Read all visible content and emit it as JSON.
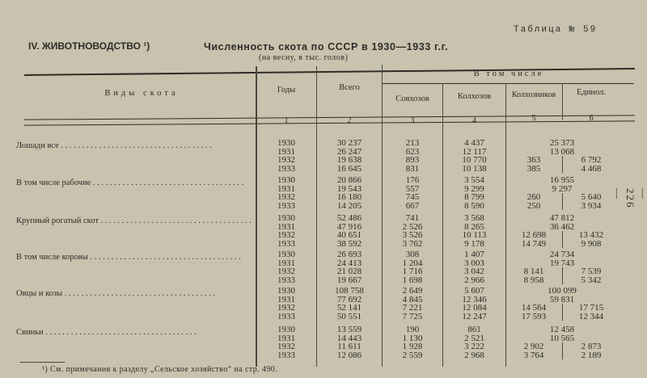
{
  "section_title": "IV. ЖИВОТНОВОДСТВО ¹)",
  "table_number": "Таблица № 59",
  "title": "Численность скота по СССР в 1930—1933 г.г.",
  "subtitle": "(на весну, в тыс. голов)",
  "page_number": "— 226 —",
  "headers": {
    "kind": "Виды скота",
    "years": "Годы",
    "total": "Всего",
    "including": "В том числе",
    "sovkhoz": "Совхозов",
    "kolkhoz": "Колхозов",
    "kolkhoznik": "Колхозников",
    "individual": "Единол.",
    "col_numbers": [
      "1",
      "2",
      "3",
      "4",
      "5",
      "6"
    ]
  },
  "rows": [
    {
      "label": "Лошади все",
      "years": [
        {
          "year": "1930",
          "total": "30 237",
          "sovkhoz": "213",
          "kolkhoz": "4 437",
          "combined": "25 373"
        },
        {
          "year": "1931",
          "total": "26 247",
          "sovkhoz": "623",
          "kolkhoz": "12 117",
          "combined": "13 068"
        },
        {
          "year": "1932",
          "total": "19 638",
          "sovkhoz": "893",
          "kolkhoz": "10 770",
          "kolkhoznik": "363",
          "individual": "6 792"
        },
        {
          "year": "1933",
          "total": "16 645",
          "sovkhoz": "831",
          "kolkhoz": "10 138",
          "kolkhoznik": "385",
          "individual": "4 468"
        }
      ]
    },
    {
      "label": "В том числе рабочие",
      "years": [
        {
          "year": "1930",
          "total": "20 866",
          "sovkhoz": "176",
          "kolkhoz": "3 554",
          "combined": "16 955"
        },
        {
          "year": "1931",
          "total": "19 543",
          "sovkhoz": "557",
          "kolkhoz": "9 299",
          "combined": "9 297"
        },
        {
          "year": "1932",
          "total": "16 180",
          "sovkhoz": "745",
          "kolkhoz": "8 799",
          "kolkhoznik": "260",
          "individual": "5 640"
        },
        {
          "year": "1933",
          "total": "14 205",
          "sovkhoz": "667",
          "kolkhoz": "8 590",
          "kolkhoznik": "250",
          "individual": "3 934"
        }
      ]
    },
    {
      "label": "Крупный рогатый скот",
      "years": [
        {
          "year": "1930",
          "total": "52 486",
          "sovkhoz": "741",
          "kolkhoz": "3 568",
          "combined": "47 812"
        },
        {
          "year": "1931",
          "total": "47 916",
          "sovkhoz": "2 526",
          "kolkhoz": "8 265",
          "combined": "36 462"
        },
        {
          "year": "1932",
          "total": "40 651",
          "sovkhoz": "3 526",
          "kolkhoz": "10 113",
          "kolkhoznik": "12 698",
          "individual": "13 432"
        },
        {
          "year": "1933",
          "total": "38 592",
          "sovkhoz": "3 762",
          "kolkhoz": "9 178",
          "kolkhoznik": "14 749",
          "individual": "9 908"
        }
      ]
    },
    {
      "label": "В том числе коровы",
      "years": [
        {
          "year": "1930",
          "total": "26 693",
          "sovkhoz": "308",
          "kolkhoz": "1 407",
          "combined": "24 734"
        },
        {
          "year": "1931",
          "total": "24 413",
          "sovkhoz": "1 204",
          "kolkhoz": "3 003",
          "combined": "19 743"
        },
        {
          "year": "1932",
          "total": "21 028",
          "sovkhoz": "1 716",
          "kolkhoz": "3 042",
          "kolkhoznik": "8 141",
          "individual": "7 539"
        },
        {
          "year": "1933",
          "total": "19 667",
          "sovkhoz": "1 698",
          "kolkhoz": "2 966",
          "kolkhoznik": "8 958",
          "individual": "5 342"
        }
      ]
    },
    {
      "label": "Овцы и козы",
      "years": [
        {
          "year": "1930",
          "total": "108 758",
          "sovkhoz": "2 649",
          "kolkhoz": "5 607",
          "combined": "100 099"
        },
        {
          "year": "1931",
          "total": "77 692",
          "sovkhoz": "4 845",
          "kolkhoz": "12 346",
          "combined": "59 831"
        },
        {
          "year": "1932",
          "total": "52 141",
          "sovkhoz": "7 221",
          "kolkhoz": "12 084",
          "kolkhoznik": "14 564",
          "individual": "17 715"
        },
        {
          "year": "1933",
          "total": "50 551",
          "sovkhoz": "7 725",
          "kolkhoz": "12 247",
          "kolkhoznik": "17 593",
          "individual": "12 344"
        }
      ]
    },
    {
      "label": "Свиньи",
      "years": [
        {
          "year": "1930",
          "total": "13 559",
          "sovkhoz": "190",
          "kolkhoz": "861",
          "combined": "12 458"
        },
        {
          "year": "1931",
          "total": "14 443",
          "sovkhoz": "1 130",
          "kolkhoz": "2 521",
          "combined": "10 565"
        },
        {
          "year": "1932",
          "total": "11 611",
          "sovkhoz": "1 928",
          "kolkhoz": "3 222",
          "kolkhoznik": "2 902",
          "individual": "2 873"
        },
        {
          "year": "1933",
          "total": "12 086",
          "sovkhoz": "2 559",
          "kolkhoz": "2 968",
          "kolkhoznik": "3 764",
          "individual": "2 189"
        }
      ]
    }
  ],
  "footnote": "¹) См. примечания к разделу „Сельское хозяйство“ на стр. 490."
}
